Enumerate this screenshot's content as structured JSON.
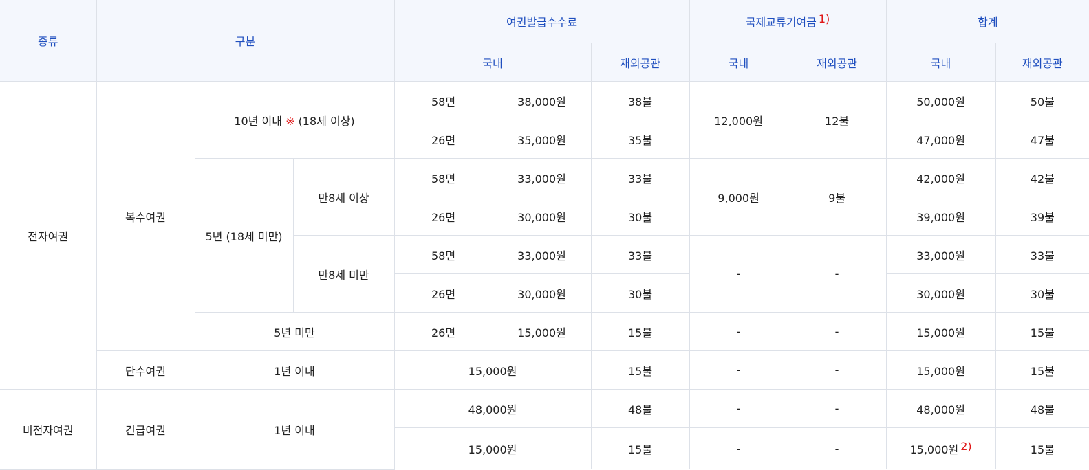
{
  "header": {
    "kind": "종류",
    "category": "구분",
    "passport_fee": "여권발급수수료",
    "intl_fund": "국제교류기여금",
    "intl_fund_note": "1)",
    "total": "합계",
    "domestic": "국내",
    "overseas": "재외공관"
  },
  "groups": {
    "electronic": "전자여권",
    "multiple": "복수여권",
    "ten_years": "10년 이내",
    "ten_years_mark": "※",
    "ten_years_age": "(18세 이상)",
    "five_years": "5년 (18세 미만)",
    "age8_over": "만8세 이상",
    "age8_under": "만8세 미만",
    "under_five": "5년 미만",
    "single": "단수여권",
    "one_year": "1년 이내",
    "non_electronic": "비전자여권",
    "emergency": "긴급여권",
    "one_year_emergency": "1년 이내"
  },
  "shared": {
    "fund_12_dom": "12,000원",
    "fund_12_abr": "12불",
    "fund_9_dom": "9,000원",
    "fund_9_abr": "9불",
    "dash": "-"
  },
  "rows": [
    {
      "pages": "58면",
      "fee_dom": "38,000원",
      "fee_abr": "38불",
      "total_dom": "50,000원",
      "total_abr": "50불"
    },
    {
      "pages": "26면",
      "fee_dom": "35,000원",
      "fee_abr": "35불",
      "total_dom": "47,000원",
      "total_abr": "47불"
    },
    {
      "pages": "58면",
      "fee_dom": "33,000원",
      "fee_abr": "33불",
      "total_dom": "42,000원",
      "total_abr": "42불"
    },
    {
      "pages": "26면",
      "fee_dom": "30,000원",
      "fee_abr": "30불",
      "total_dom": "39,000원",
      "total_abr": "39불"
    },
    {
      "pages": "58면",
      "fee_dom": "33,000원",
      "fee_abr": "33불",
      "total_dom": "33,000원",
      "total_abr": "33불"
    },
    {
      "pages": "26면",
      "fee_dom": "30,000원",
      "fee_abr": "30불",
      "total_dom": "30,000원",
      "total_abr": "30불"
    },
    {
      "pages": "26면",
      "fee_dom": "15,000원",
      "fee_abr": "15불",
      "total_dom": "15,000원",
      "total_abr": "15불"
    },
    {
      "fee_dom": "15,000원",
      "fee_abr": "15불",
      "total_dom": "15,000원",
      "total_abr": "15불"
    },
    {
      "fee_dom": "48,000원",
      "fee_abr": "48불",
      "total_dom": "48,000원",
      "total_abr": "48불"
    },
    {
      "fee_dom": "15,000원",
      "fee_abr": "15불",
      "total_dom": "15,000원",
      "total_note": "2)",
      "total_abr": "15불"
    }
  ]
}
